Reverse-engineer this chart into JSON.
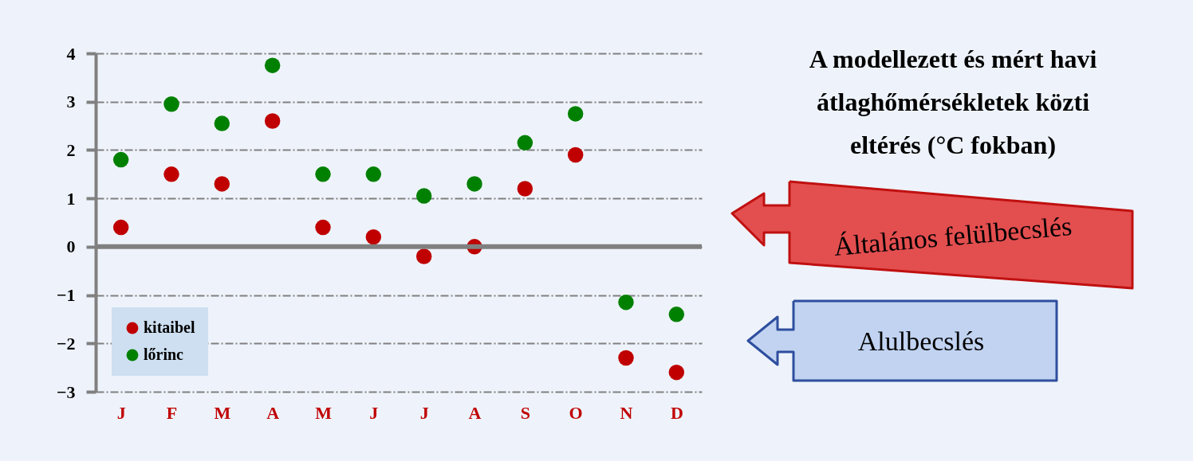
{
  "chart_data": {
    "type": "scatter",
    "title": "A modellezett és mért havi átlaghőmérsékletek közti eltérés (°C fokban)",
    "categories": [
      "J",
      "F",
      "M",
      "A",
      "M",
      "J",
      "J",
      "A",
      "S",
      "O",
      "N",
      "D"
    ],
    "series": [
      {
        "name": "kitaibel",
        "color": "#c00000",
        "values": [
          0.4,
          1.5,
          1.3,
          2.6,
          0.4,
          0.2,
          -0.2,
          0,
          1.2,
          1.9,
          -2.3,
          -2.6
        ]
      },
      {
        "name": "lőrinc",
        "color": "#008000",
        "values": [
          1.8,
          2.95,
          2.55,
          3.75,
          1.5,
          1.5,
          1.05,
          1.3,
          2.15,
          2.75,
          -1.15,
          -1.4
        ]
      }
    ],
    "ylim": [
      -3,
      4
    ],
    "yticks": [
      -3,
      -2,
      -1,
      0,
      1,
      2,
      3,
      4
    ],
    "grid": "y",
    "legend": "bottom left",
    "marker": "circle",
    "ref_lines": [
      {
        "axis": "y",
        "value": 0,
        "label": null,
        "color": "#808080"
      }
    ],
    "annotations": [
      "Általános felülbecslés",
      "Alulbecslés"
    ]
  }
}
